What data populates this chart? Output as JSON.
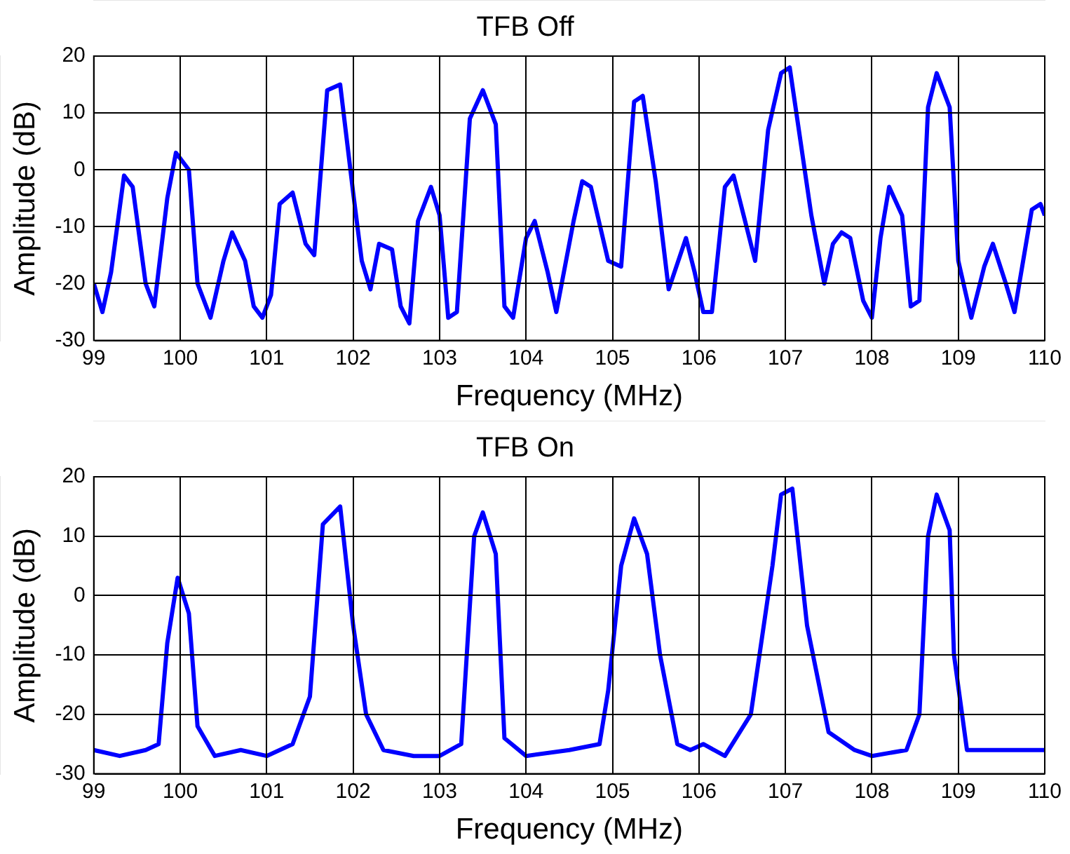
{
  "chart_data": [
    {
      "type": "line",
      "title": "TFB Off",
      "xlabel": "Frequency (MHz)",
      "ylabel": "Amplitude (dB)",
      "color": "#0000ff",
      "marker": "none",
      "grid": true,
      "xlim": [
        99,
        110
      ],
      "ylim": [
        -30,
        20
      ],
      "xticks": [
        99,
        100,
        101,
        102,
        103,
        104,
        105,
        106,
        107,
        108,
        109,
        110
      ],
      "yticks": [
        -30,
        -20,
        -10,
        0,
        10,
        20
      ],
      "x": [
        99.0,
        99.1,
        99.2,
        99.35,
        99.45,
        99.6,
        99.7,
        99.85,
        99.95,
        100.1,
        100.2,
        100.35,
        100.5,
        100.6,
        100.75,
        100.85,
        100.95,
        101.05,
        101.15,
        101.3,
        101.45,
        101.55,
        101.7,
        101.85,
        102.0,
        102.1,
        102.2,
        102.3,
        102.45,
        102.55,
        102.65,
        102.75,
        102.9,
        103.0,
        103.1,
        103.2,
        103.35,
        103.5,
        103.65,
        103.75,
        103.85,
        104.0,
        104.1,
        104.25,
        104.35,
        104.55,
        104.65,
        104.75,
        104.95,
        105.1,
        105.25,
        105.35,
        105.5,
        105.65,
        105.85,
        105.95,
        106.05,
        106.15,
        106.3,
        106.4,
        106.65,
        106.8,
        106.95,
        107.05,
        107.3,
        107.45,
        107.55,
        107.65,
        107.75,
        107.9,
        108.0,
        108.1,
        108.2,
        108.35,
        108.45,
        108.55,
        108.65,
        108.75,
        108.9,
        109.0,
        109.15,
        109.3,
        109.4,
        109.55,
        109.65,
        109.85,
        109.95,
        110.0
      ],
      "values": [
        -20,
        -25,
        -18,
        -1,
        -3,
        -20,
        -24,
        -5,
        3,
        0,
        -20,
        -26,
        -16,
        -11,
        -16,
        -24,
        -26,
        -22,
        -6,
        -4,
        -13,
        -15,
        14,
        15,
        -4,
        -16,
        -21,
        -13,
        -14,
        -24,
        -27,
        -9,
        -3,
        -8,
        -26,
        -25,
        9,
        14,
        8,
        -24,
        -26,
        -12,
        -9,
        -18,
        -25,
        -9,
        -2,
        -3,
        -16,
        -17,
        12,
        13,
        -2,
        -21,
        -12,
        -18,
        -25,
        -25,
        -3,
        -1,
        -16,
        7,
        17,
        18,
        -8,
        -20,
        -13,
        -11,
        -12,
        -23,
        -26,
        -12,
        -3,
        -8,
        -24,
        -23,
        11,
        17,
        11,
        -16,
        -26,
        -17,
        -13,
        -20,
        -25,
        -7,
        -6,
        -8
      ]
    },
    {
      "type": "line",
      "title": "TFB On",
      "xlabel": "Frequency (MHz)",
      "ylabel": "Amplitude (dB)",
      "color": "#0000ff",
      "marker": "none",
      "grid": true,
      "xlim": [
        99,
        110
      ],
      "ylim": [
        -30,
        20
      ],
      "xticks": [
        99,
        100,
        101,
        102,
        103,
        104,
        105,
        106,
        107,
        108,
        109,
        110
      ],
      "yticks": [
        -30,
        -20,
        -10,
        0,
        10,
        20
      ],
      "x": [
        99.0,
        99.3,
        99.6,
        99.75,
        99.85,
        99.97,
        100.1,
        100.2,
        100.4,
        100.7,
        101.0,
        101.3,
        101.5,
        101.65,
        101.85,
        102.0,
        102.15,
        102.35,
        102.7,
        103.0,
        103.25,
        103.4,
        103.5,
        103.65,
        103.75,
        104.0,
        104.5,
        104.85,
        104.95,
        105.1,
        105.25,
        105.4,
        105.55,
        105.75,
        105.9,
        106.05,
        106.3,
        106.6,
        106.85,
        106.95,
        107.08,
        107.25,
        107.5,
        107.8,
        108.0,
        108.4,
        108.55,
        108.65,
        108.75,
        108.9,
        108.95,
        109.1,
        109.5,
        110.0
      ],
      "values": [
        -26,
        -27,
        -26,
        -25,
        -8,
        3,
        -3,
        -22,
        -27,
        -26,
        -27,
        -25,
        -17,
        12,
        15,
        -5,
        -20,
        -26,
        -27,
        -27,
        -25,
        10,
        14,
        7,
        -24,
        -27,
        -26,
        -25,
        -16,
        5,
        13,
        7,
        -10,
        -25,
        -26,
        -25,
        -27,
        -20,
        5,
        17,
        18,
        -5,
        -23,
        -26,
        -27,
        -26,
        -20,
        10,
        17,
        11,
        -10,
        -26,
        -26,
        -26
      ]
    }
  ]
}
